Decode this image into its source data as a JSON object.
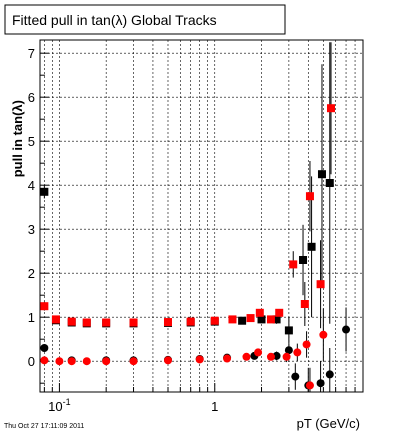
{
  "chart_data": {
    "type": "scatter",
    "title": "Fitted pull in tan(λ)  Global Tracks",
    "xlabel": "pT (GeV/c)",
    "ylabel": "pull in tan(λ)",
    "x_scale": "log",
    "xlim": [
      0.075,
      9.0
    ],
    "ylim": [
      -0.7,
      7.3
    ],
    "y_ticks": [
      0,
      1,
      2,
      3,
      4,
      5,
      6,
      7
    ],
    "x_tick_labels": [
      {
        "value": 0.1,
        "base": "10",
        "exponent": "-1"
      },
      {
        "value": 1,
        "base": "1",
        "exponent": ""
      }
    ],
    "grid": true,
    "timestamp": "Thu Oct 27 17:11:09 2011",
    "series": [
      {
        "marker": "square",
        "color": "#000000",
        "points": [
          {
            "x": 0.08,
            "y": 3.85,
            "err": 0.15
          },
          {
            "x": 0.095,
            "y": 0.93,
            "err": 0.05
          },
          {
            "x": 0.12,
            "y": 0.88,
            "err": 0.04
          },
          {
            "x": 0.15,
            "y": 0.86,
            "err": 0.03
          },
          {
            "x": 0.2,
            "y": 0.86,
            "err": 0.03
          },
          {
            "x": 0.3,
            "y": 0.86,
            "err": 0.03
          },
          {
            "x": 0.5,
            "y": 0.87,
            "err": 0.03
          },
          {
            "x": 0.7,
            "y": 0.88,
            "err": 0.03
          },
          {
            "x": 1.0,
            "y": 0.9,
            "err": 0.03
          },
          {
            "x": 1.5,
            "y": 0.92,
            "err": 0.03
          },
          {
            "x": 2.0,
            "y": 0.95,
            "err": 0.05
          },
          {
            "x": 2.5,
            "y": 0.95,
            "err": 0.1
          },
          {
            "x": 3.0,
            "y": 0.7,
            "err": 0.3
          },
          {
            "x": 3.7,
            "y": 2.3,
            "err": 0.8
          },
          {
            "x": 4.2,
            "y": 2.6,
            "err": 1.6
          },
          {
            "x": 4.9,
            "y": 4.25,
            "err": 2.5
          },
          {
            "x": 5.5,
            "y": 4.05,
            "err": 3.2
          }
        ]
      },
      {
        "marker": "square",
        "color": "#ff0000",
        "points": [
          {
            "x": 0.08,
            "y": 1.25,
            "err": 0.1
          },
          {
            "x": 0.095,
            "y": 0.95,
            "err": 0.05
          },
          {
            "x": 0.12,
            "y": 0.9,
            "err": 0.04
          },
          {
            "x": 0.15,
            "y": 0.88,
            "err": 0.03
          },
          {
            "x": 0.2,
            "y": 0.88,
            "err": 0.03
          },
          {
            "x": 0.3,
            "y": 0.88,
            "err": 0.03
          },
          {
            "x": 0.5,
            "y": 0.89,
            "err": 0.03
          },
          {
            "x": 0.7,
            "y": 0.9,
            "err": 0.03
          },
          {
            "x": 1.0,
            "y": 0.92,
            "err": 0.03
          },
          {
            "x": 1.3,
            "y": 0.95,
            "err": 0.03
          },
          {
            "x": 1.7,
            "y": 0.98,
            "err": 0.05
          },
          {
            "x": 1.95,
            "y": 1.1,
            "err": 0.05
          },
          {
            "x": 2.3,
            "y": 0.95,
            "err": 0.06
          },
          {
            "x": 2.6,
            "y": 1.1,
            "err": 0.08
          },
          {
            "x": 3.2,
            "y": 2.2,
            "err": 0.3
          },
          {
            "x": 3.8,
            "y": 1.3,
            "err": 0.5
          },
          {
            "x": 4.1,
            "y": 3.75,
            "err": 0.8
          },
          {
            "x": 4.8,
            "y": 1.75,
            "err": 1.0
          },
          {
            "x": 5.6,
            "y": 5.75,
            "err": 1.5
          }
        ]
      },
      {
        "marker": "circle",
        "color": "#000000",
        "points": [
          {
            "x": 0.08,
            "y": 0.3,
            "err": 0.05
          },
          {
            "x": 0.12,
            "y": 0.02,
            "err": 0.04
          },
          {
            "x": 0.2,
            "y": 0.02,
            "err": 0.03
          },
          {
            "x": 0.3,
            "y": 0.02,
            "err": 0.03
          },
          {
            "x": 0.5,
            "y": 0.03,
            "err": 0.03
          },
          {
            "x": 0.8,
            "y": 0.05,
            "err": 0.03
          },
          {
            "x": 1.2,
            "y": 0.08,
            "err": 0.03
          },
          {
            "x": 1.8,
            "y": 0.12,
            "err": 0.05
          },
          {
            "x": 2.5,
            "y": 0.12,
            "err": 0.1
          },
          {
            "x": 3.0,
            "y": 0.25,
            "err": 0.15
          },
          {
            "x": 3.3,
            "y": -0.35,
            "err": 0.3
          },
          {
            "x": 4.0,
            "y": -0.55,
            "err": 0.4
          },
          {
            "x": 4.8,
            "y": -0.5,
            "err": 0.5
          },
          {
            "x": 5.5,
            "y": -0.3,
            "err": 0.6
          },
          {
            "x": 7.0,
            "y": 0.72,
            "err": 0.5
          }
        ]
      },
      {
        "marker": "circle",
        "color": "#ff0000",
        "points": [
          {
            "x": 0.08,
            "y": 0.02,
            "err": 0.05
          },
          {
            "x": 0.1,
            "y": 0.0,
            "err": 0.04
          },
          {
            "x": 0.12,
            "y": 0.0,
            "err": 0.03
          },
          {
            "x": 0.15,
            "y": 0.0,
            "err": 0.03
          },
          {
            "x": 0.2,
            "y": 0.0,
            "err": 0.03
          },
          {
            "x": 0.3,
            "y": 0.0,
            "err": 0.03
          },
          {
            "x": 0.5,
            "y": 0.02,
            "err": 0.03
          },
          {
            "x": 0.8,
            "y": 0.04,
            "err": 0.03
          },
          {
            "x": 1.2,
            "y": 0.06,
            "err": 0.03
          },
          {
            "x": 1.6,
            "y": 0.1,
            "err": 0.05
          },
          {
            "x": 1.9,
            "y": 0.2,
            "err": 0.06
          },
          {
            "x": 2.3,
            "y": 0.1,
            "err": 0.08
          },
          {
            "x": 2.9,
            "y": 0.1,
            "err": 0.12
          },
          {
            "x": 3.4,
            "y": 0.2,
            "err": 0.2
          },
          {
            "x": 3.9,
            "y": 0.38,
            "err": 0.3
          },
          {
            "x": 4.1,
            "y": -0.55,
            "err": 0.4
          },
          {
            "x": 5.0,
            "y": 0.6,
            "err": 0.6
          }
        ]
      }
    ]
  }
}
